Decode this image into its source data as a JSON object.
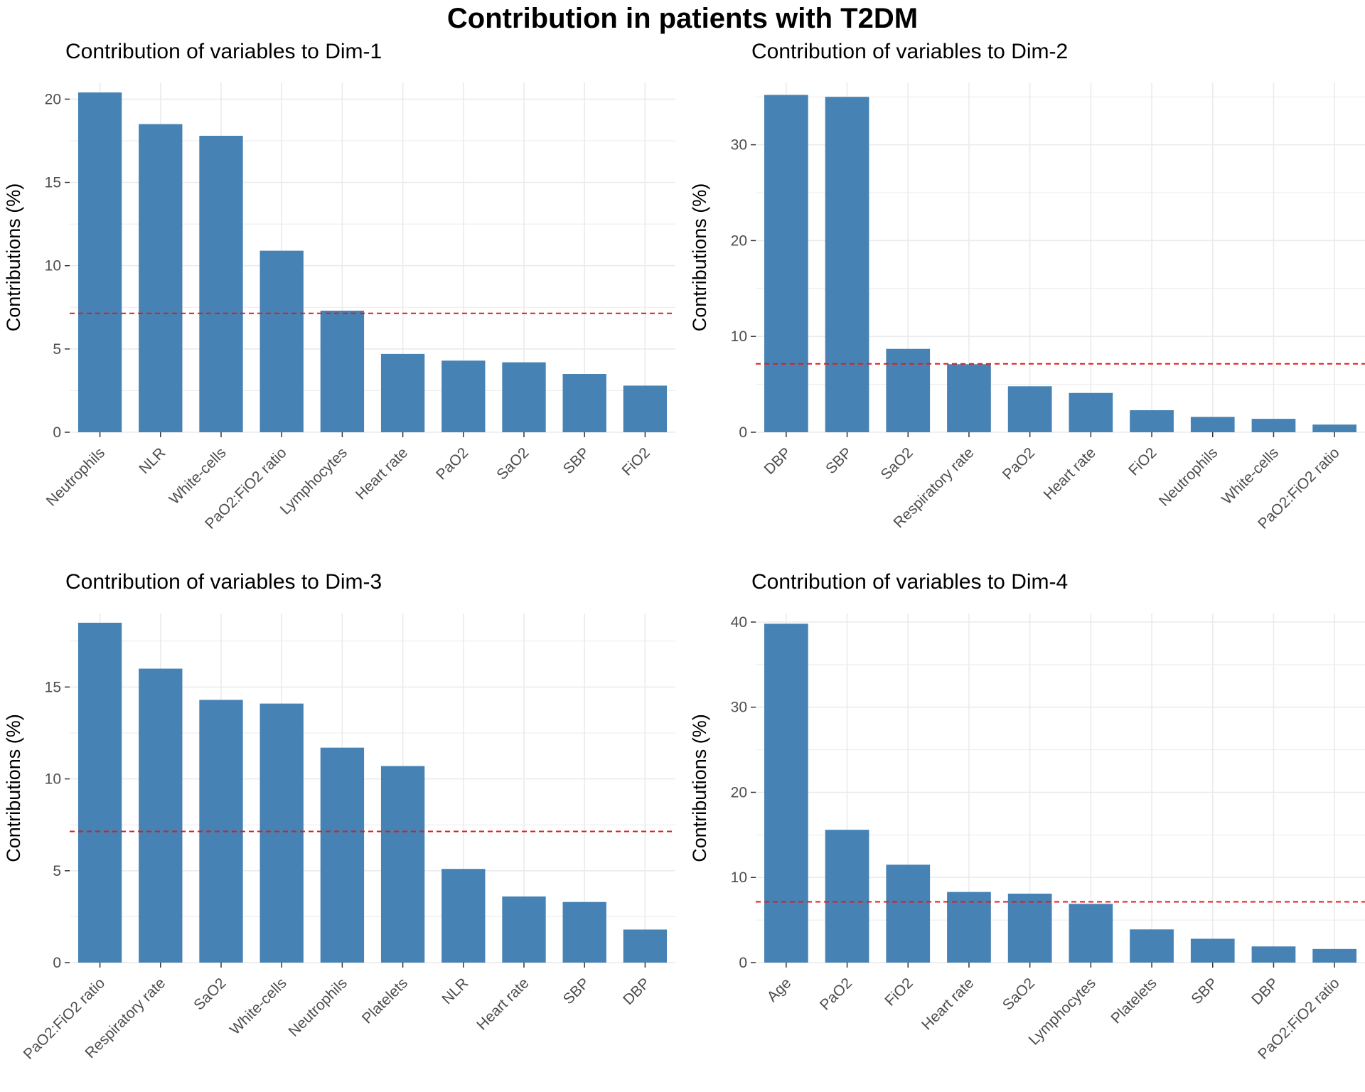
{
  "title": "Contribution in patients with T2DM",
  "colors": {
    "bar": "#4682b4",
    "reference_line": "#e31a1c",
    "grid": "#ebebeb",
    "tick_text": "#4d4d4d"
  },
  "chart_data": [
    {
      "type": "bar",
      "title": "Contribution of variables to Dim-1",
      "ylabel": "Contributions (%)",
      "xlabel": "",
      "ylim": [
        0,
        21
      ],
      "yticks": [
        0,
        5,
        10,
        15,
        20
      ],
      "grid": true,
      "reference_line": 7.14,
      "categories": [
        "Neutrophils",
        "NLR",
        "White-cells",
        "PaO2:FiO2 ratio",
        "Lymphocytes",
        "Heart rate",
        "PaO2",
        "SaO2",
        "SBP",
        "FiO2"
      ],
      "values": [
        20.4,
        18.5,
        17.8,
        10.9,
        7.3,
        4.7,
        4.3,
        4.2,
        3.5,
        2.8
      ]
    },
    {
      "type": "bar",
      "title": "Contribution of variables to Dim-2",
      "ylabel": "Contributions (%)",
      "xlabel": "",
      "ylim": [
        0,
        36.5
      ],
      "yticks": [
        0,
        10,
        20,
        30
      ],
      "grid": true,
      "reference_line": 7.14,
      "categories": [
        "DBP",
        "SBP",
        "SaO2",
        "Respiratory rate",
        "PaO2",
        "Heart rate",
        "FiO2",
        "Neutrophils",
        "White-cells",
        "PaO2:FiO2 ratio"
      ],
      "values": [
        35.2,
        35.0,
        8.7,
        7.1,
        4.8,
        4.1,
        2.3,
        1.6,
        1.4,
        0.8
      ]
    },
    {
      "type": "bar",
      "title": "Contribution of variables to Dim-3",
      "ylabel": "Contributions (%)",
      "xlabel": "",
      "ylim": [
        0,
        19
      ],
      "yticks": [
        0,
        5,
        10,
        15
      ],
      "grid": true,
      "reference_line": 7.14,
      "categories": [
        "PaO2:FiO2 ratio",
        "Respiratory rate",
        "SaO2",
        "White-cells",
        "Neutrophils",
        "Platelets",
        "NLR",
        "Heart rate",
        "SBP",
        "DBP"
      ],
      "values": [
        18.5,
        16.0,
        14.3,
        14.1,
        11.7,
        10.7,
        5.1,
        3.6,
        3.3,
        1.8
      ]
    },
    {
      "type": "bar",
      "title": "Contribution of variables to Dim-4",
      "ylabel": "Contributions (%)",
      "xlabel": "",
      "ylim": [
        0,
        41
      ],
      "yticks": [
        0,
        10,
        20,
        30,
        40
      ],
      "grid": true,
      "reference_line": 7.14,
      "categories": [
        "Age",
        "PaO2",
        "FiO2",
        "Heart rate",
        "SaO2",
        "Lymphocytes",
        "Platelets",
        "SBP",
        "DBP",
        "PaO2:FiO2 ratio"
      ],
      "values": [
        39.8,
        15.6,
        11.5,
        8.3,
        8.1,
        6.9,
        3.9,
        2.8,
        1.9,
        1.6
      ]
    }
  ]
}
